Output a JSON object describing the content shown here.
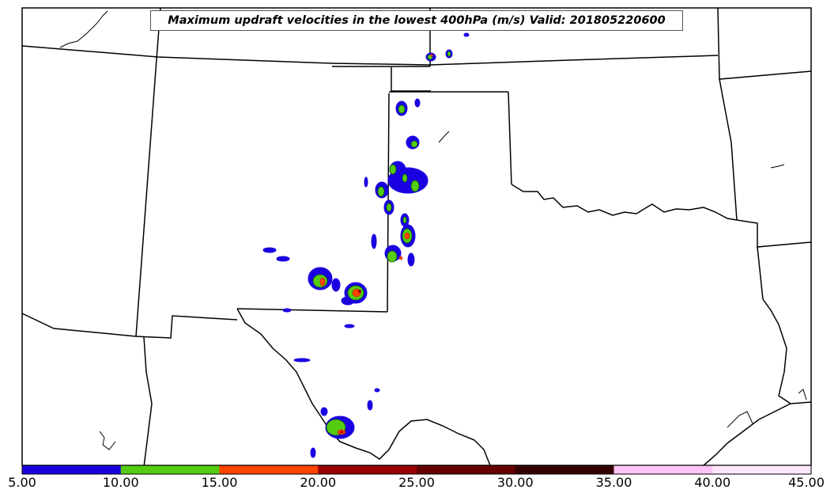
{
  "title": "Maximum updraft velocities in the lowest 400hPa (m/s) Valid: 201805220600",
  "colorbar": {
    "ticks": [
      "5.00",
      "10.00",
      "15.00",
      "20.00",
      "25.00",
      "30.00",
      "35.00",
      "40.00",
      "45.00"
    ],
    "levels": [
      5,
      10,
      15,
      20,
      25,
      30,
      35,
      40,
      45
    ],
    "colors": [
      "#1a00e0",
      "#55cc11",
      "#ff4400",
      "#990000",
      "#660000",
      "#330000",
      "#ffc4f4",
      "#ffe6fc"
    ]
  },
  "contour_colors": {
    "level_5": "#1a00e0",
    "level_10": "#55cc11",
    "level_15": "#ff4400",
    "level_20": "#990000"
  }
}
